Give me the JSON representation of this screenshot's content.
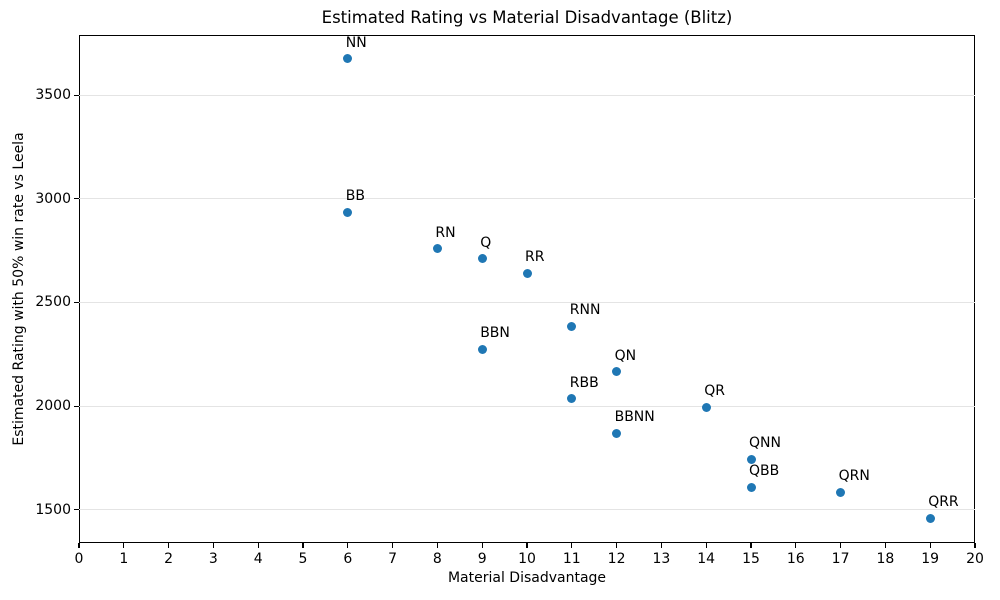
{
  "chart_data": {
    "type": "scatter",
    "title": "Estimated Rating vs Material Disadvantage (Blitz)",
    "xlabel": "Material Disadvantage",
    "ylabel": "Estimated Rating with 50% win rate vs Leela",
    "xlim": [
      0,
      20
    ],
    "ylim": [
      1340,
      3790
    ],
    "x_ticks": [
      0,
      1,
      2,
      3,
      4,
      5,
      6,
      7,
      8,
      9,
      10,
      11,
      12,
      13,
      14,
      15,
      16,
      17,
      18,
      19,
      20
    ],
    "y_ticks": [
      1500,
      2000,
      2500,
      3000,
      3500
    ],
    "grid": "horizontal-only",
    "legend": "none",
    "marker_color": "#1f77b4",
    "grid_color": "#e4e4e4",
    "points": [
      {
        "label": "NN",
        "x": 6,
        "y": 3675
      },
      {
        "label": "BB",
        "x": 6,
        "y": 2935
      },
      {
        "label": "RN",
        "x": 8,
        "y": 2760
      },
      {
        "label": "Q",
        "x": 9,
        "y": 2710
      },
      {
        "label": "RR",
        "x": 10,
        "y": 2640
      },
      {
        "label": "RNN",
        "x": 11,
        "y": 2385
      },
      {
        "label": "BBN",
        "x": 9,
        "y": 2275
      },
      {
        "label": "QN",
        "x": 12,
        "y": 2165
      },
      {
        "label": "RBB",
        "x": 11,
        "y": 2035
      },
      {
        "label": "QR",
        "x": 14,
        "y": 1995
      },
      {
        "label": "BBNN",
        "x": 12,
        "y": 1870
      },
      {
        "label": "QNN",
        "x": 15,
        "y": 1745
      },
      {
        "label": "QBB",
        "x": 15,
        "y": 1610
      },
      {
        "label": "QRN",
        "x": 17,
        "y": 1585
      },
      {
        "label": "QRR",
        "x": 19,
        "y": 1460
      }
    ]
  }
}
